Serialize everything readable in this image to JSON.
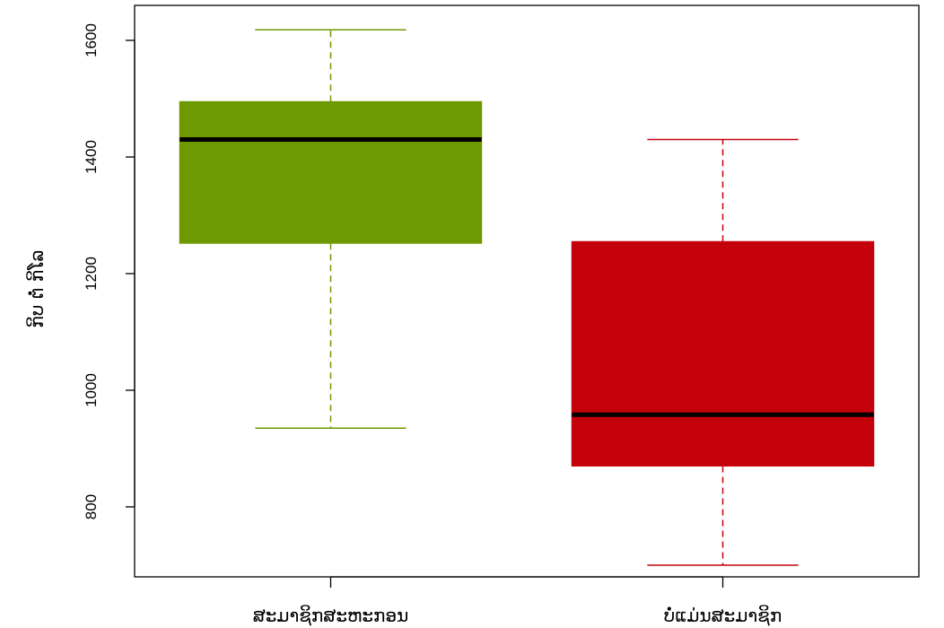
{
  "chart_data": {
    "type": "boxplot",
    "title": "",
    "xlabel": "",
    "ylabel": "ກິບ ຕໍ່ ກິໂລ",
    "ylim": [
      680,
      1660
    ],
    "yticks": [
      800,
      1000,
      1200,
      1400,
      1600
    ],
    "grid": false,
    "categories": [
      "ສະມາຊິກສະຫະກອນ",
      "ບໍ່ແມ່ນສະມາຊິກ"
    ],
    "series": [
      {
        "whisker_low": 935,
        "q1": 1252,
        "median": 1430,
        "q3": 1495,
        "whisker_high": 1618,
        "color": "#6f9900"
      },
      {
        "whisker_low": 700,
        "q1": 870,
        "median": 958,
        "q3": 1255,
        "whisker_high": 1430,
        "color": "#c4000b"
      }
    ]
  }
}
